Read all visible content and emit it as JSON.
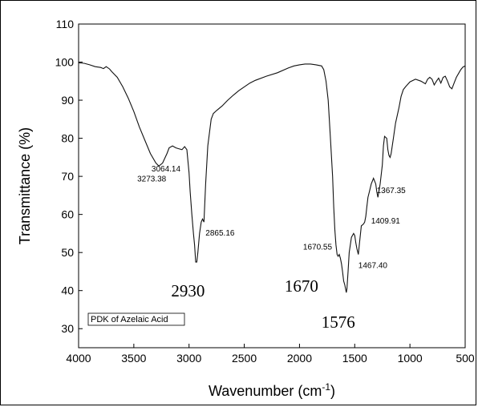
{
  "chart_data": {
    "type": "line",
    "title": "",
    "xlabel": "Wavenumber (cm",
    "xlabel_sup": "-1",
    "xlabel_suffix": ")",
    "ylabel": "Transmittance (%)",
    "xlim": [
      4000,
      500
    ],
    "ylim": [
      25,
      110
    ],
    "x_reversed": true,
    "grid": false,
    "x_ticks": [
      4000,
      3500,
      3000,
      2500,
      2000,
      1500,
      1000,
      500
    ],
    "y_ticks": [
      30,
      40,
      50,
      60,
      70,
      80,
      90,
      100,
      110
    ],
    "legend_label": "PDK of Azelaic Acid",
    "legend_position": "bottom-left",
    "series": [
      {
        "x": [
          4000,
          3950,
          3900,
          3850,
          3800,
          3775,
          3750,
          3720,
          3700,
          3650,
          3600,
          3550,
          3500,
          3450,
          3400,
          3350,
          3300,
          3273,
          3240,
          3200,
          3180,
          3150,
          3120,
          3100,
          3064,
          3040,
          3020,
          3000,
          2990,
          2975,
          2960,
          2950,
          2940,
          2930,
          2920,
          2905,
          2890,
          2878,
          2865,
          2850,
          2830,
          2800,
          2780,
          2750,
          2700,
          2650,
          2600,
          2550,
          2500,
          2450,
          2400,
          2300,
          2200,
          2100,
          2050,
          2000,
          1950,
          1900,
          1850,
          1800,
          1780,
          1760,
          1740,
          1720,
          1700,
          1690,
          1680,
          1670,
          1660,
          1650,
          1640,
          1630,
          1620,
          1610,
          1600,
          1590,
          1580,
          1576,
          1570,
          1560,
          1550,
          1530,
          1510,
          1500,
          1490,
          1480,
          1467,
          1455,
          1440,
          1420,
          1410,
          1400,
          1390,
          1380,
          1367,
          1350,
          1330,
          1310,
          1300,
          1290,
          1270,
          1250,
          1240,
          1230,
          1210,
          1200,
          1190,
          1180,
          1170,
          1150,
          1130,
          1100,
          1080,
          1060,
          1040,
          1000,
          950,
          900,
          860,
          840,
          820,
          800,
          780,
          760,
          740,
          720,
          700,
          680,
          660,
          640,
          620,
          600,
          580,
          560,
          540,
          520,
          500
        ],
        "y": [
          99.8,
          99.7,
          99.3,
          98.8,
          98.6,
          98.3,
          98.8,
          98.2,
          97.5,
          96.0,
          93.5,
          90.5,
          87.0,
          83.0,
          79.5,
          76.0,
          73.5,
          72.7,
          73.5,
          76.0,
          77.5,
          78.0,
          77.5,
          77.3,
          77.0,
          77.8,
          77.0,
          71.0,
          66.0,
          60.0,
          55.0,
          52.0,
          47.5,
          47.5,
          50.0,
          55.0,
          58.0,
          58.8,
          58.0,
          68.0,
          78.0,
          85.0,
          86.5,
          87.3,
          88.5,
          90.0,
          91.3,
          92.5,
          93.5,
          94.5,
          95.2,
          96.3,
          97.2,
          98.5,
          99.0,
          99.3,
          99.5,
          99.5,
          99.3,
          99.0,
          98.0,
          95.0,
          90.0,
          80.0,
          70.0,
          62.0,
          56.0,
          52.0,
          49.5,
          49.0,
          49.5,
          48.5,
          47.0,
          45.0,
          42.5,
          41.5,
          40.0,
          39.5,
          40.5,
          45.0,
          50.0,
          54.0,
          55.0,
          54.5,
          52.5,
          51.0,
          49.5,
          53.0,
          57.0,
          57.5,
          58.0,
          59.5,
          62.0,
          64.5,
          66.0,
          68.0,
          69.5,
          68.0,
          66.0,
          64.5,
          68.0,
          73.0,
          78.0,
          80.5,
          80.0,
          77.0,
          75.5,
          75.0,
          76.0,
          80.0,
          84.0,
          88.0,
          91.0,
          92.8,
          93.5,
          94.8,
          95.5,
          95.0,
          94.3,
          95.5,
          96.0,
          95.5,
          94.0,
          95.0,
          95.8,
          94.5,
          96.0,
          96.3,
          95.0,
          93.5,
          93.0,
          94.5,
          96.0,
          97.0,
          98.0,
          98.7,
          99.0
        ]
      }
    ],
    "annotations": [
      {
        "text": "3273.38",
        "x": 3273,
        "y": 72.7,
        "size": "small"
      },
      {
        "text": "3064.14",
        "x": 3064,
        "y": 77.0,
        "size": "small"
      },
      {
        "text": "2865.16",
        "x": 2865,
        "y": 58.0,
        "size": "small"
      },
      {
        "text": "1670.55",
        "x": 1670,
        "y": 52.0,
        "size": "small"
      },
      {
        "text": "1467.40",
        "x": 1467,
        "y": 49.5,
        "size": "small"
      },
      {
        "text": "1409.91",
        "x": 1410,
        "y": 58.0,
        "size": "small"
      },
      {
        "text": "1367.35",
        "x": 1367,
        "y": 66.0,
        "size": "small"
      },
      {
        "text": "2930",
        "x": 2930,
        "y": 47.5,
        "size": "big"
      },
      {
        "text": "1670",
        "x": 1670,
        "y": 49.0,
        "size": "big"
      },
      {
        "text": "1576",
        "x": 1576,
        "y": 39.5,
        "size": "big"
      }
    ]
  }
}
